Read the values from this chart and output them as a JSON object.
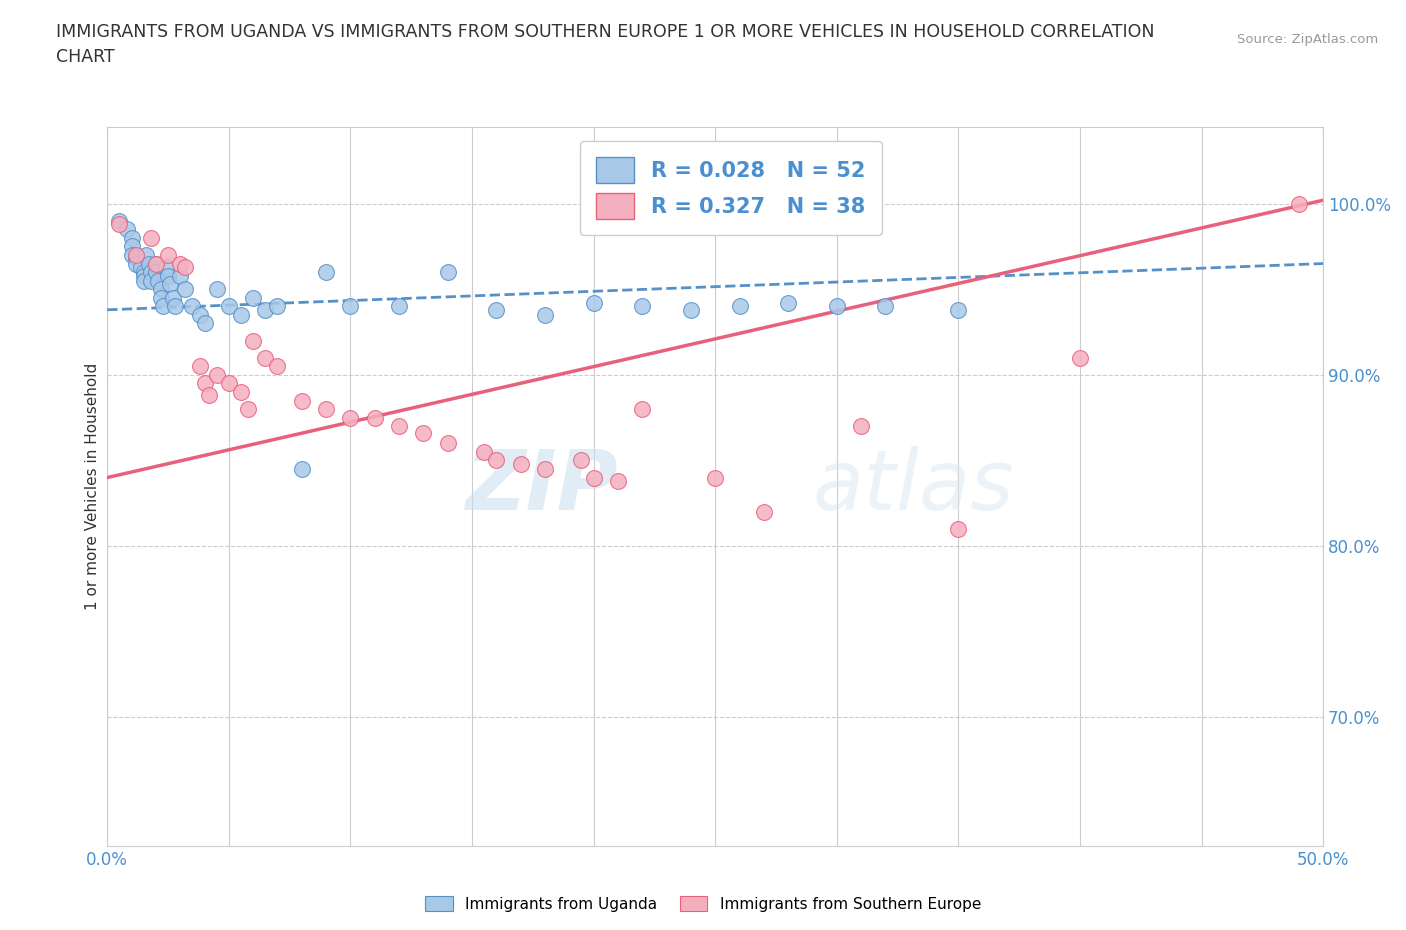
{
  "title": "IMMIGRANTS FROM UGANDA VS IMMIGRANTS FROM SOUTHERN EUROPE 1 OR MORE VEHICLES IN HOUSEHOLD CORRELATION\nCHART",
  "source_text": "Source: ZipAtlas.com",
  "ylabel": "1 or more Vehicles in Household",
  "ytick_labels": [
    "70.0%",
    "80.0%",
    "90.0%",
    "100.0%"
  ],
  "ytick_values": [
    0.7,
    0.8,
    0.9,
    1.0
  ],
  "xlim": [
    0.0,
    0.5
  ],
  "ylim": [
    0.625,
    1.045
  ],
  "legend_r1": "R = 0.028   N = 52",
  "legend_r2": "R = 0.327   N = 38",
  "color_uganda": "#a8c8e8",
  "color_southern": "#f5b0c0",
  "color_uganda_line": "#5590c8",
  "color_southern_line": "#e8607a",
  "color_text_blue": "#4a90d0",
  "watermark_zip": "ZIP",
  "watermark_atlas": "atlas",
  "uganda_x": [
    0.005,
    0.008,
    0.01,
    0.01,
    0.01,
    0.012,
    0.012,
    0.014,
    0.015,
    0.015,
    0.015,
    0.016,
    0.017,
    0.018,
    0.018,
    0.02,
    0.02,
    0.021,
    0.022,
    0.022,
    0.023,
    0.024,
    0.025,
    0.026,
    0.027,
    0.028,
    0.03,
    0.032,
    0.035,
    0.038,
    0.04,
    0.045,
    0.05,
    0.055,
    0.06,
    0.065,
    0.07,
    0.08,
    0.09,
    0.1,
    0.12,
    0.14,
    0.16,
    0.18,
    0.2,
    0.22,
    0.24,
    0.26,
    0.28,
    0.3,
    0.32,
    0.35
  ],
  "uganda_y": [
    0.99,
    0.985,
    0.98,
    0.975,
    0.97,
    0.968,
    0.965,
    0.963,
    0.96,
    0.958,
    0.955,
    0.97,
    0.965,
    0.96,
    0.955,
    0.965,
    0.96,
    0.955,
    0.95,
    0.945,
    0.94,
    0.963,
    0.958,
    0.953,
    0.945,
    0.94,
    0.958,
    0.95,
    0.94,
    0.935,
    0.93,
    0.95,
    0.94,
    0.935,
    0.945,
    0.938,
    0.94,
    0.845,
    0.96,
    0.94,
    0.94,
    0.96,
    0.938,
    0.935,
    0.942,
    0.94,
    0.938,
    0.94,
    0.942,
    0.94,
    0.94,
    0.938
  ],
  "southern_x": [
    0.005,
    0.012,
    0.018,
    0.02,
    0.025,
    0.03,
    0.032,
    0.038,
    0.04,
    0.042,
    0.045,
    0.05,
    0.055,
    0.058,
    0.06,
    0.065,
    0.07,
    0.08,
    0.09,
    0.1,
    0.11,
    0.12,
    0.13,
    0.14,
    0.155,
    0.16,
    0.17,
    0.18,
    0.195,
    0.2,
    0.21,
    0.22,
    0.25,
    0.27,
    0.31,
    0.35,
    0.4,
    0.49
  ],
  "southern_y": [
    0.988,
    0.97,
    0.98,
    0.965,
    0.97,
    0.965,
    0.963,
    0.905,
    0.895,
    0.888,
    0.9,
    0.895,
    0.89,
    0.88,
    0.92,
    0.91,
    0.905,
    0.885,
    0.88,
    0.875,
    0.875,
    0.87,
    0.866,
    0.86,
    0.855,
    0.85,
    0.848,
    0.845,
    0.85,
    0.84,
    0.838,
    0.88,
    0.84,
    0.82,
    0.87,
    0.81,
    0.91,
    1.0
  ]
}
